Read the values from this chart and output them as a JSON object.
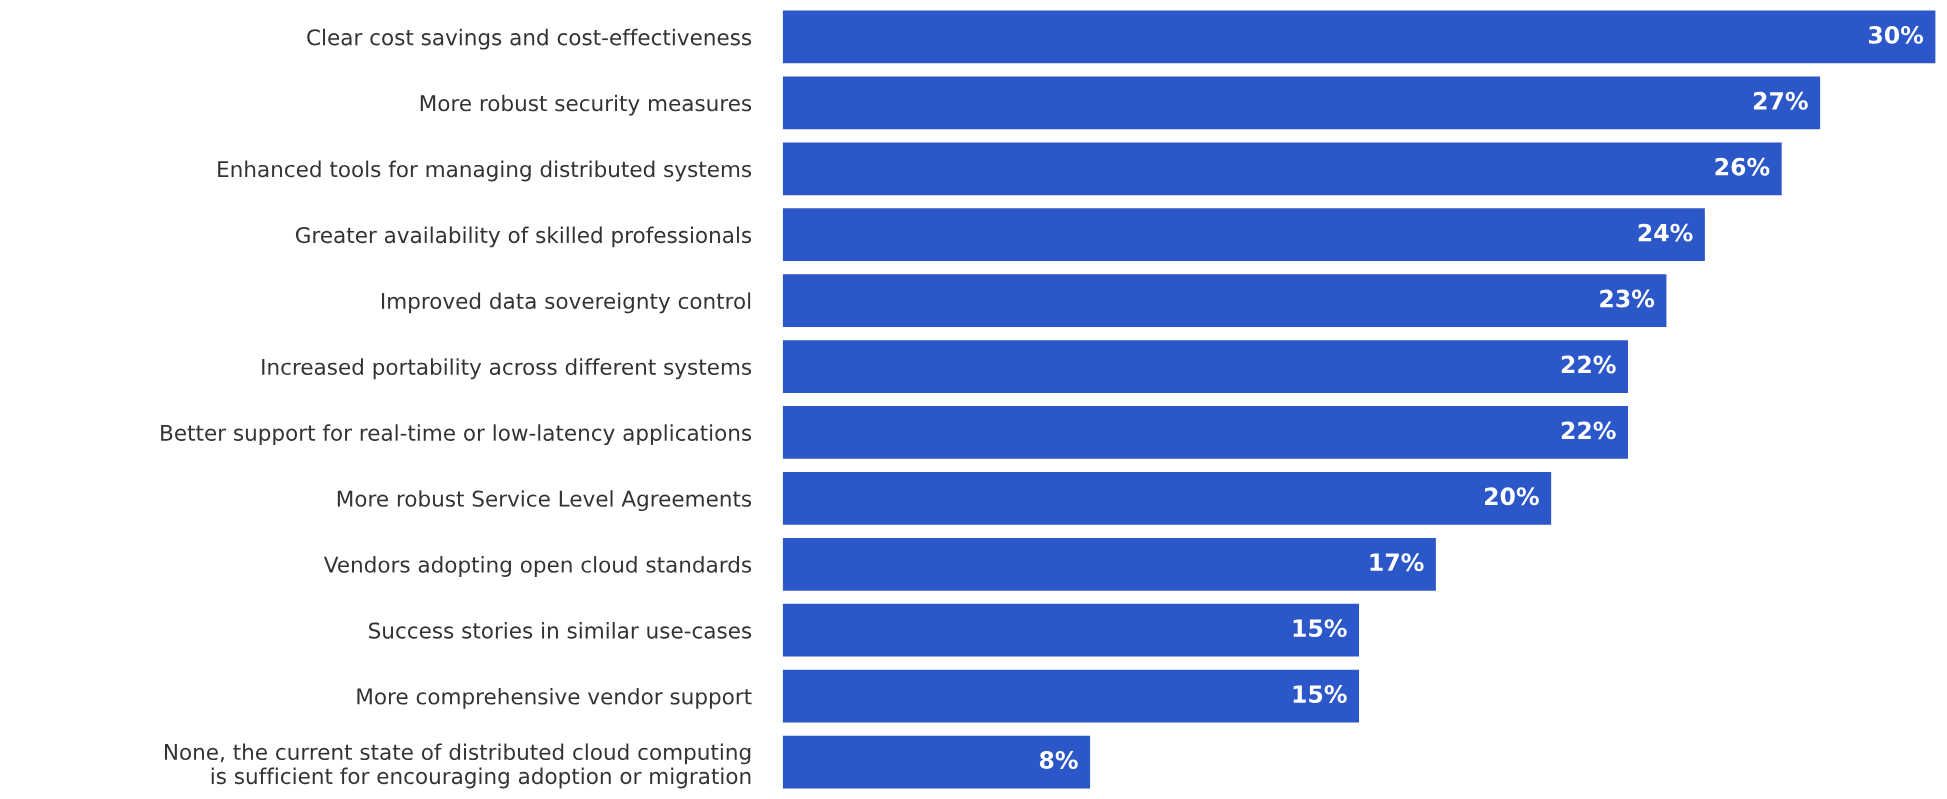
{
  "chart_data": {
    "type": "bar",
    "orientation": "horizontal",
    "categories": [
      "Clear cost savings and cost-effectiveness",
      "More robust security measures",
      "Enhanced tools for managing distributed systems",
      "Greater availability of skilled professionals",
      "Improved data sovereignty control",
      "Increased portability across different systems",
      "Better support for real-time or low-latency applications",
      "More robust Service Level Agreements",
      "Vendors adopting open cloud standards",
      "Success stories in similar use-cases",
      "More comprehensive vendor support",
      "None, the current state of distributed cloud computing\nis sufficient for encouraging adoption or migration"
    ],
    "values": [
      30,
      27,
      26,
      24,
      23,
      22,
      22,
      20,
      17,
      15,
      15,
      8
    ],
    "color": "#2c57c8",
    "value_labels": [
      "30%",
      "27%",
      "26%",
      "24%",
      "23%",
      "22%",
      "22%",
      "20%",
      "17%",
      "15%",
      "15%",
      "8%"
    ],
    "grid": false,
    "legend": false
  }
}
